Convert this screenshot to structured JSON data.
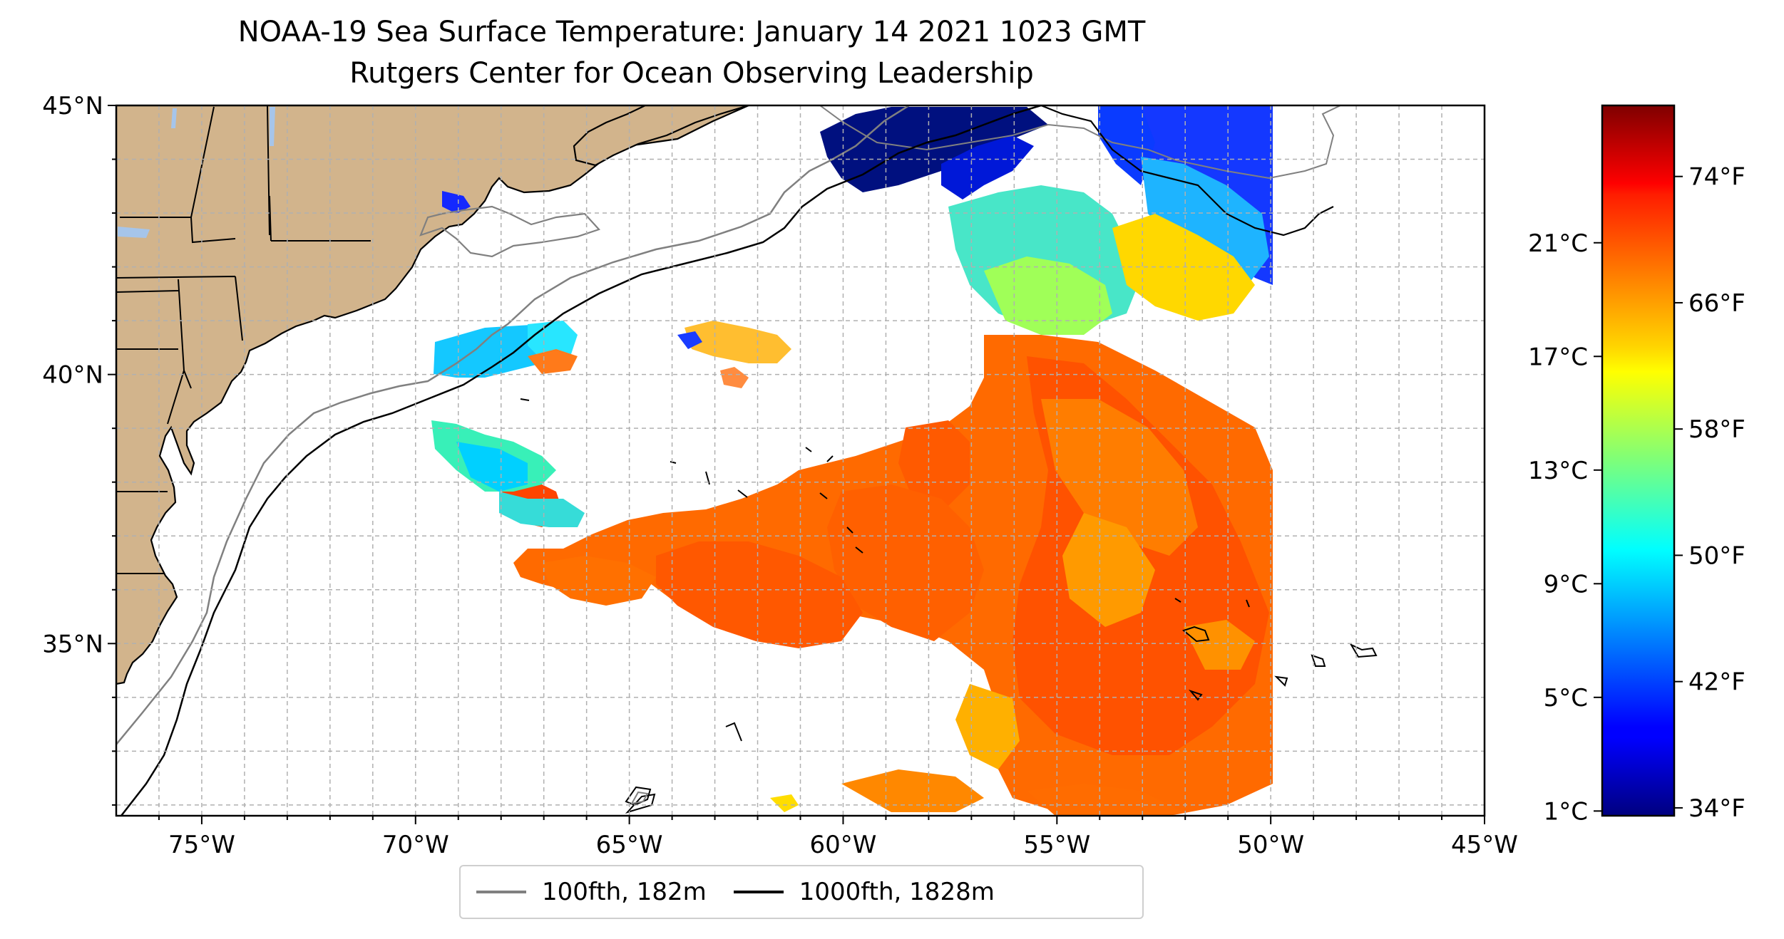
{
  "title": {
    "line1": "NOAA-19 Sea Surface Temperature: January 14 2021 1023 GMT",
    "line2": "Rutgers Center for Ocean Observing Leadership"
  },
  "map": {
    "lon_ticks": [
      "75°W",
      "70°W",
      "65°W",
      "60°W",
      "55°W",
      "50°W",
      "45°W"
    ],
    "lon_values": [
      -75,
      -70,
      -65,
      -60,
      -55,
      -50,
      -45
    ],
    "lat_ticks": [
      "45°N",
      "40°N",
      "35°N"
    ],
    "lat_values": [
      45,
      40,
      35
    ],
    "lon_range": [
      -77,
      -45
    ],
    "lat_range": [
      31.8,
      45
    ],
    "grid": true,
    "land_color": "#d2b48c",
    "lake_color": "#a6c5ea"
  },
  "legend": {
    "position": "bottom-center",
    "items": [
      {
        "label": "100fth, 182m",
        "color": "#808080"
      },
      {
        "label": "1000fth, 1828m",
        "color": "#000000"
      }
    ]
  },
  "colorbar": {
    "colormap": "jet",
    "celsius_labels": [
      "1°C",
      "5°C",
      "9°C",
      "13°C",
      "17°C",
      "21°C"
    ],
    "celsius_values": [
      1,
      5,
      9,
      13,
      17,
      21
    ],
    "fahrenheit_labels": [
      "34°F",
      "42°F",
      "50°F",
      "58°F",
      "66°F",
      "74°F"
    ],
    "fahrenheit_values": [
      34,
      42,
      50,
      58,
      66,
      74
    ],
    "range_f": [
      33.5,
      78.5
    ]
  }
}
